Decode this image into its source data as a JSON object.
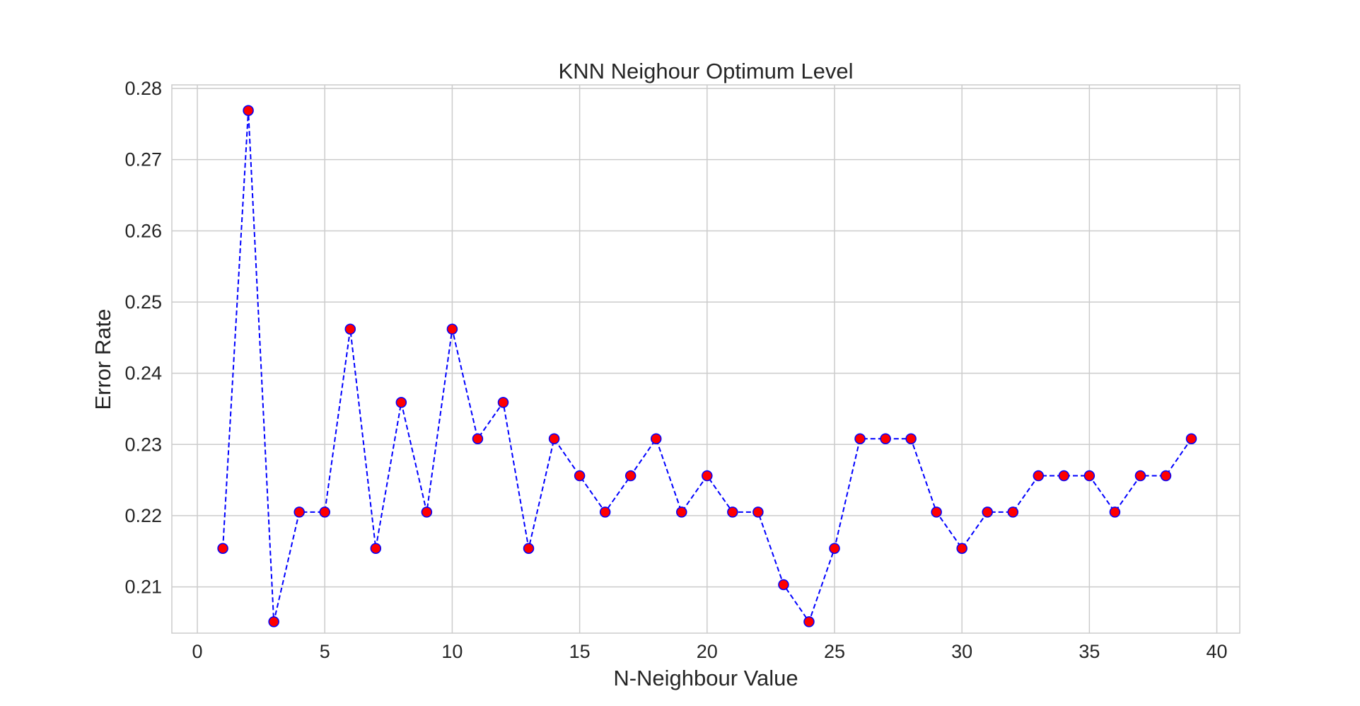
{
  "chart_data": {
    "type": "line",
    "title": "KNN Neighour Optimum Level",
    "xlabel": "N-Neighbour Value",
    "ylabel": "Error Rate",
    "xlim": [
      -1,
      40.9
    ],
    "ylim": [
      0.2035,
      0.2805
    ],
    "xticks": [
      0,
      5,
      10,
      15,
      20,
      25,
      30,
      35,
      40
    ],
    "yticks": [
      0.21,
      0.22,
      0.23,
      0.24,
      0.25,
      0.26,
      0.27,
      0.28
    ],
    "xtick_labels": [
      "0",
      "5",
      "10",
      "15",
      "20",
      "25",
      "30",
      "35",
      "40"
    ],
    "ytick_labels": [
      "0.21",
      "0.22",
      "0.23",
      "0.24",
      "0.25",
      "0.26",
      "0.27",
      "0.28"
    ],
    "grid": true,
    "style": {
      "line_color": "#0000ff",
      "line_style": "dashed",
      "marker_face": "#ff0000",
      "marker_edge": "#0000ff",
      "grid_color": "#cccccc",
      "frame_color": "#cccccc"
    },
    "series": [
      {
        "x": [
          1,
          2,
          3,
          4,
          5,
          6,
          7,
          8,
          9,
          10,
          11,
          12,
          13,
          14,
          15,
          16,
          17,
          18,
          19,
          20,
          21,
          22,
          23,
          24,
          25,
          26,
          27,
          28,
          29,
          30,
          31,
          32,
          33,
          34,
          35,
          36,
          37,
          38,
          39
        ],
        "values": [
          0.2154,
          0.2769,
          0.2051,
          0.2205,
          0.2205,
          0.2462,
          0.2154,
          0.2359,
          0.2205,
          0.2462,
          0.2308,
          0.2359,
          0.2154,
          0.2308,
          0.2256,
          0.2205,
          0.2256,
          0.2308,
          0.2205,
          0.2256,
          0.2205,
          0.2205,
          0.2103,
          0.2051,
          0.2154,
          0.2308,
          0.2308,
          0.2308,
          0.2205,
          0.2154,
          0.2205,
          0.2205,
          0.2256,
          0.2256,
          0.2256,
          0.2205,
          0.2256,
          0.2256,
          0.2308
        ]
      }
    ]
  }
}
